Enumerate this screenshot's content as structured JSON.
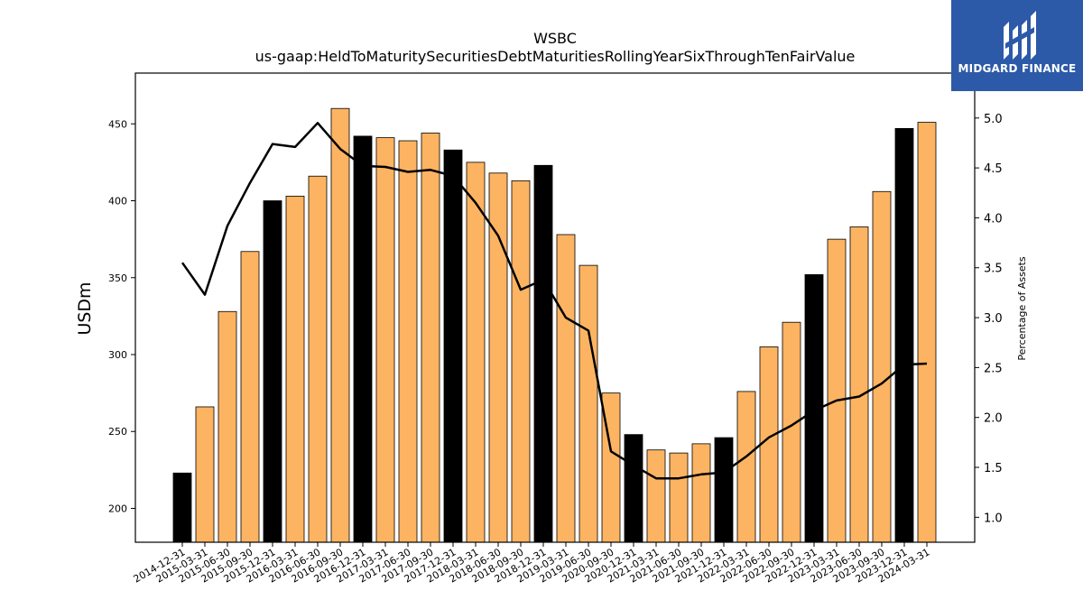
{
  "chart_data": {
    "type": "bar",
    "title": "WSBC",
    "subtitle": "us-gaap:HeldToMaturitySecuritiesDebtMaturitiesRollingYearSixThroughTenFairValue",
    "ylabel": "USDm",
    "y2label": "Percentage of Assets",
    "ylim": [
      178,
      483
    ],
    "y2lim": [
      0.75,
      5.45
    ],
    "yticks": [
      200,
      250,
      300,
      350,
      400,
      450
    ],
    "y2ticks": [
      1.0,
      1.5,
      2.0,
      2.5,
      3.0,
      3.5,
      4.0,
      4.5,
      5.0
    ],
    "y2ticklabels": [
      "1.0",
      "1.5",
      "2.0",
      "2.5",
      "3.0",
      "3.5",
      "4.0",
      "4.5",
      "5.0"
    ],
    "categories": [
      "2014-12-31",
      "2015-03-31",
      "2015-06-30",
      "2015-09-30",
      "2015-12-31",
      "2016-03-31",
      "2016-06-30",
      "2016-09-30",
      "2016-12-31",
      "2017-03-31",
      "2017-06-30",
      "2017-09-30",
      "2017-12-31",
      "2018-03-31",
      "2018-06-30",
      "2018-09-30",
      "2018-12-31",
      "2019-03-31",
      "2019-06-30",
      "2020-09-30",
      "2020-12-31",
      "2021-03-31",
      "2021-06-30",
      "2021-09-30",
      "2021-12-31",
      "2022-03-31",
      "2022-06-30",
      "2022-09-30",
      "2022-12-31",
      "2023-03-31",
      "2023-06-30",
      "2023-09-30",
      "2023-12-31",
      "2024-03-31"
    ],
    "series": [
      {
        "type": "bar",
        "axis": "left",
        "values": [
          223,
          266,
          328,
          367,
          400,
          403,
          416,
          460,
          442,
          441,
          439,
          444,
          433,
          425,
          418,
          413,
          423,
          378,
          358,
          275,
          248,
          238,
          236,
          242,
          246,
          276,
          305,
          321,
          352,
          375,
          383,
          406,
          447,
          451
        ],
        "highlight": [
          true,
          false,
          false,
          false,
          true,
          false,
          false,
          false,
          true,
          false,
          false,
          false,
          true,
          false,
          false,
          false,
          true,
          false,
          false,
          false,
          true,
          false,
          false,
          false,
          true,
          false,
          false,
          false,
          true,
          false,
          false,
          false,
          true,
          false
        ]
      },
      {
        "type": "line",
        "axis": "right",
        "values": [
          3.55,
          3.23,
          3.92,
          4.35,
          4.74,
          4.71,
          4.95,
          4.69,
          4.52,
          4.51,
          4.46,
          4.48,
          4.42,
          4.15,
          3.82,
          3.28,
          3.38,
          3.0,
          2.87,
          1.66,
          1.52,
          1.39,
          1.39,
          1.43,
          1.45,
          1.61,
          1.8,
          1.92,
          2.07,
          2.17,
          2.21,
          2.34,
          2.53,
          2.54
        ]
      }
    ],
    "colors": {
      "bar": "#fdb462",
      "bar_highlight": "#000000",
      "line": "#000000",
      "edge": "#000000"
    },
    "grid": false,
    "legend": "none"
  },
  "logo": {
    "text": "MIDGARD FINANCE",
    "background": "#2c5aa8"
  }
}
